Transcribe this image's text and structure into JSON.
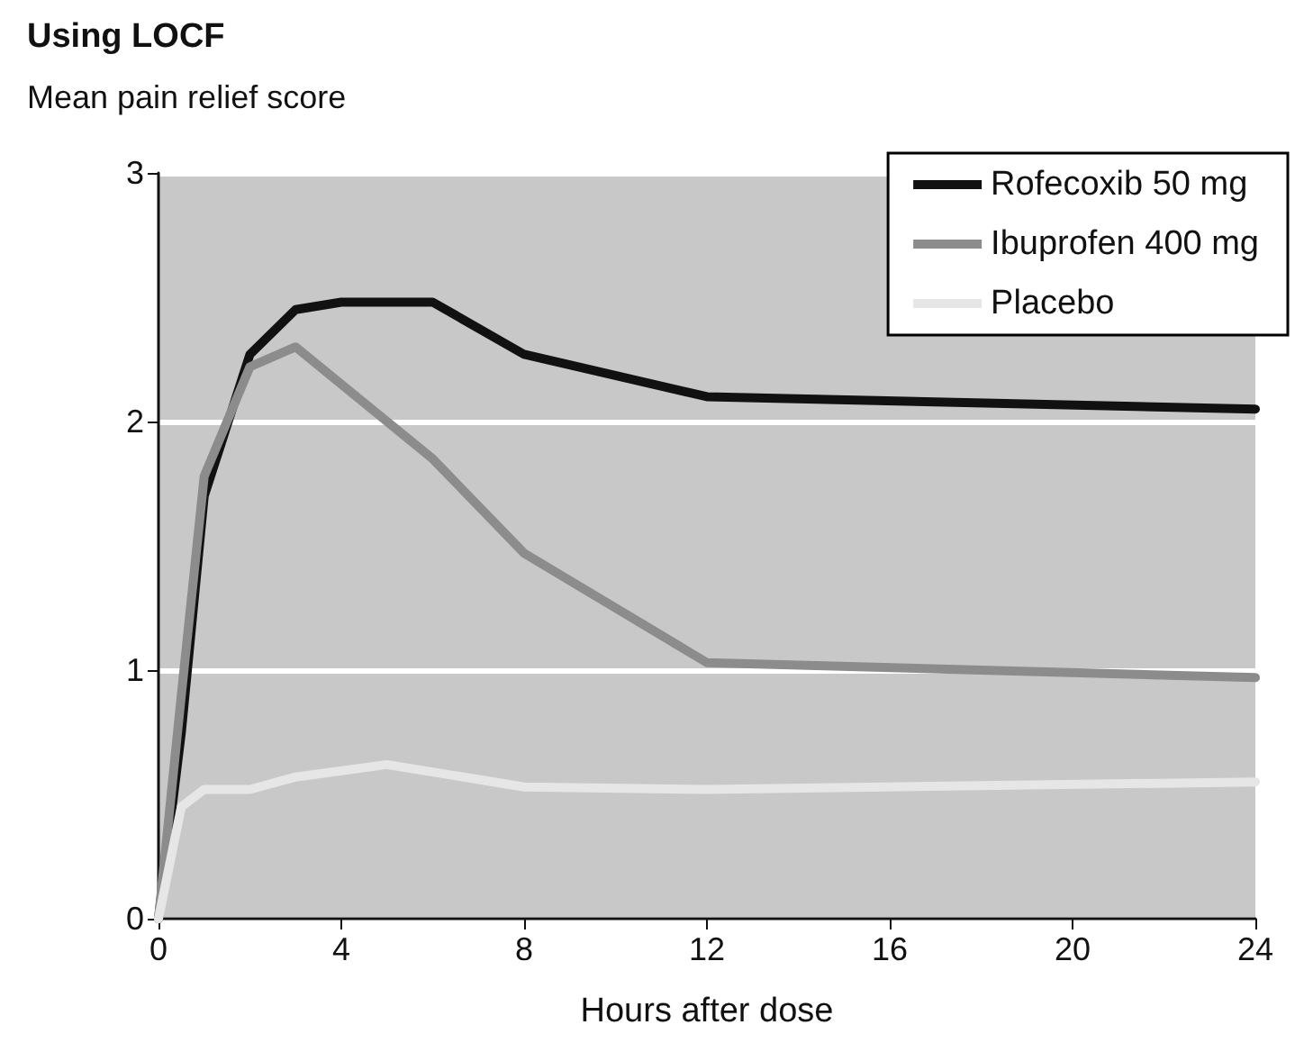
{
  "chart_data": {
    "type": "line",
    "title": "Using LOCF",
    "ylabel": "Mean pain relief score",
    "xlabel": "Hours after dose",
    "series": [
      {
        "name": "Rofecoxib 50 mg",
        "color": "#111111",
        "x": [
          0,
          0.5,
          1,
          2,
          3,
          4,
          6,
          8,
          12,
          24
        ],
        "values": [
          0,
          0.75,
          1.7,
          2.27,
          2.45,
          2.48,
          2.48,
          2.27,
          2.1,
          2.05
        ]
      },
      {
        "name": "Ibuprofen 400 mg",
        "color": "#8c8c8c",
        "x": [
          0,
          0.5,
          1,
          2,
          3,
          4,
          6,
          8,
          12,
          24
        ],
        "values": [
          0,
          0.9,
          1.78,
          2.22,
          2.3,
          2.15,
          1.85,
          1.47,
          1.03,
          0.97
        ]
      },
      {
        "name": "Placebo",
        "color": "#e6e6e6",
        "x": [
          0,
          0.5,
          1,
          2,
          3,
          5,
          8,
          12,
          24
        ],
        "values": [
          0,
          0.45,
          0.52,
          0.52,
          0.57,
          0.62,
          0.53,
          0.52,
          0.55
        ]
      }
    ],
    "xlim": [
      0,
      24
    ],
    "xticks": [
      0,
      4,
      8,
      12,
      16,
      20,
      24
    ],
    "ylim": [
      0,
      3
    ],
    "yticks": [
      0,
      1,
      2,
      3
    ],
    "grid": "y",
    "legend": "top right",
    "marker": "none",
    "line_style": "solid"
  }
}
